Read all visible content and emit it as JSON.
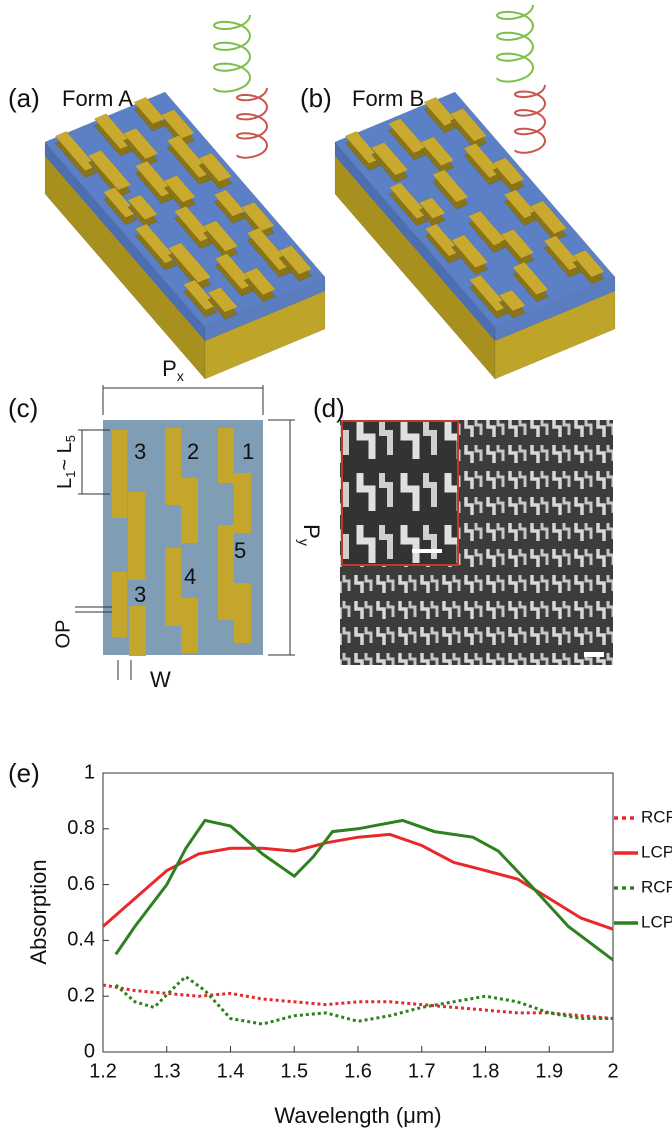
{
  "panels": {
    "a": {
      "label": "(a)",
      "title": "Form A"
    },
    "b": {
      "label": "(b)",
      "title": "Form B"
    },
    "c": {
      "label": "(c)",
      "period_x": [
        "P",
        "x"
      ],
      "period_y": [
        "P",
        "y"
      ],
      "length_range": [
        "L",
        "1",
        "~ L",
        "5"
      ],
      "offset": "OP",
      "width": "W",
      "bar_numbers": [
        "1",
        "2",
        "3",
        "4",
        "5",
        "3"
      ]
    },
    "d": {
      "label": "(d)"
    }
  },
  "chart_data": {
    "type": "line",
    "label": "(e)",
    "xlabel": "Wavelength (μm)",
    "ylabel": "Absorption",
    "xlim": [
      1.2,
      2
    ],
    "ylim": [
      0,
      1
    ],
    "xticks": [
      1.2,
      1.3,
      1.4,
      1.5,
      1.6,
      1.7,
      1.8,
      1.9,
      2
    ],
    "yticks": [
      0,
      0.2,
      0.4,
      0.6,
      0.8,
      1
    ],
    "legend": "right",
    "series": [
      {
        "name": "RCP Exp",
        "color": "#e8292b",
        "style": "dotted",
        "x": [
          1.2,
          1.25,
          1.3,
          1.35,
          1.4,
          1.45,
          1.5,
          1.55,
          1.6,
          1.65,
          1.7,
          1.75,
          1.8,
          1.85,
          1.9,
          1.95,
          2
        ],
        "values": [
          0.24,
          0.22,
          0.21,
          0.2,
          0.21,
          0.19,
          0.18,
          0.17,
          0.18,
          0.18,
          0.17,
          0.16,
          0.15,
          0.14,
          0.14,
          0.13,
          0.12
        ]
      },
      {
        "name": "LCP Exp",
        "color": "#e8292b",
        "style": "solid",
        "x": [
          1.2,
          1.25,
          1.3,
          1.35,
          1.4,
          1.45,
          1.5,
          1.55,
          1.6,
          1.65,
          1.7,
          1.75,
          1.8,
          1.85,
          1.9,
          1.95,
          2
        ],
        "values": [
          0.45,
          0.55,
          0.65,
          0.71,
          0.73,
          0.73,
          0.72,
          0.75,
          0.77,
          0.78,
          0.74,
          0.68,
          0.65,
          0.62,
          0.55,
          0.48,
          0.44
        ]
      },
      {
        "name": "RCP Sim",
        "color": "#2e8020",
        "style": "dotted",
        "x": [
          1.22,
          1.25,
          1.28,
          1.32,
          1.33,
          1.36,
          1.4,
          1.45,
          1.5,
          1.55,
          1.6,
          1.65,
          1.7,
          1.75,
          1.8,
          1.85,
          1.9,
          1.95,
          2
        ],
        "values": [
          0.24,
          0.18,
          0.16,
          0.25,
          0.27,
          0.22,
          0.12,
          0.1,
          0.13,
          0.14,
          0.11,
          0.13,
          0.16,
          0.18,
          0.2,
          0.18,
          0.14,
          0.12,
          0.12
        ]
      },
      {
        "name": "LCP Sim",
        "color": "#2e8020",
        "style": "solid",
        "x": [
          1.22,
          1.25,
          1.3,
          1.33,
          1.36,
          1.4,
          1.45,
          1.5,
          1.53,
          1.56,
          1.6,
          1.67,
          1.72,
          1.78,
          1.82,
          1.87,
          1.93,
          2
        ],
        "values": [
          0.35,
          0.45,
          0.6,
          0.73,
          0.83,
          0.81,
          0.71,
          0.63,
          0.7,
          0.79,
          0.8,
          0.83,
          0.79,
          0.77,
          0.72,
          0.6,
          0.45,
          0.33
        ]
      }
    ]
  }
}
